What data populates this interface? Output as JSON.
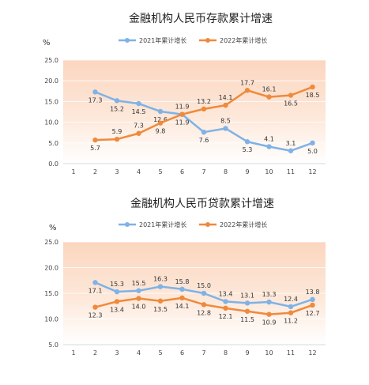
{
  "chart_data": [
    {
      "type": "line",
      "title": "金融机构人民币存款累计增速",
      "unit": "%",
      "x": [
        "1",
        "2",
        "3",
        "4",
        "5",
        "6",
        "7",
        "8",
        "9",
        "10",
        "11",
        "12"
      ],
      "ylim": [
        0,
        25
      ],
      "yticks": [
        "0.0",
        "5.0",
        "10.0",
        "15.0",
        "20.0",
        "25.0"
      ],
      "grid": true,
      "legend_position": "top",
      "series": [
        {
          "name": "2021年累计增长",
          "color": "#7fb2e6",
          "values": [
            null,
            17.3,
            15.2,
            14.5,
            12.6,
            11.9,
            7.6,
            8.5,
            5.3,
            4.1,
            3.1,
            5.0
          ],
          "labels": [
            "",
            "17.3",
            "15.2",
            "14.5",
            "12.6",
            "11.9",
            "7.6",
            "8.5",
            "5.3",
            "4.1",
            "3.1",
            "5.0"
          ]
        },
        {
          "name": "2022年累计增长",
          "color": "#ef8a3c",
          "values": [
            null,
            5.7,
            5.9,
            7.3,
            9.8,
            11.9,
            13.2,
            14.1,
            17.7,
            16.1,
            16.5,
            18.5
          ],
          "labels": [
            "",
            "5.7",
            "5.9",
            "7.3",
            "9.8",
            "11.9",
            "13.2",
            "14.1",
            "17.7",
            "16.1",
            "16.5",
            "18.5"
          ]
        }
      ]
    },
    {
      "type": "line",
      "title": "金融机构人民币贷款累计增速",
      "unit": "%",
      "x": [
        "1",
        "2",
        "3",
        "4",
        "5",
        "6",
        "7",
        "8",
        "9",
        "10",
        "11",
        "12"
      ],
      "ylim": [
        5,
        25
      ],
      "yticks": [
        "5.0",
        "10.0",
        "15.0",
        "20.0",
        "25.0"
      ],
      "grid": true,
      "legend_position": "top",
      "series": [
        {
          "name": "2021年累计增长",
          "color": "#7fb2e6",
          "values": [
            null,
            17.1,
            15.3,
            15.5,
            16.3,
            15.8,
            15.0,
            13.4,
            13.1,
            13.3,
            12.4,
            13.8
          ],
          "labels": [
            "",
            "17.1",
            "15.3",
            "15.5",
            "16.3",
            "15.8",
            "15.0",
            "13.4",
            "13.1",
            "13.3",
            "12.4",
            "13.8"
          ]
        },
        {
          "name": "2022年累计增长",
          "color": "#ef8a3c",
          "values": [
            null,
            12.3,
            13.4,
            14.0,
            13.5,
            14.1,
            12.8,
            12.1,
            11.5,
            10.9,
            11.2,
            12.7
          ],
          "labels": [
            "",
            "12.3",
            "13.4",
            "14.0",
            "13.5",
            "14.1",
            "12.8",
            "12.1",
            "11.5",
            "10.9",
            "11.2",
            "12.7"
          ]
        }
      ]
    }
  ]
}
